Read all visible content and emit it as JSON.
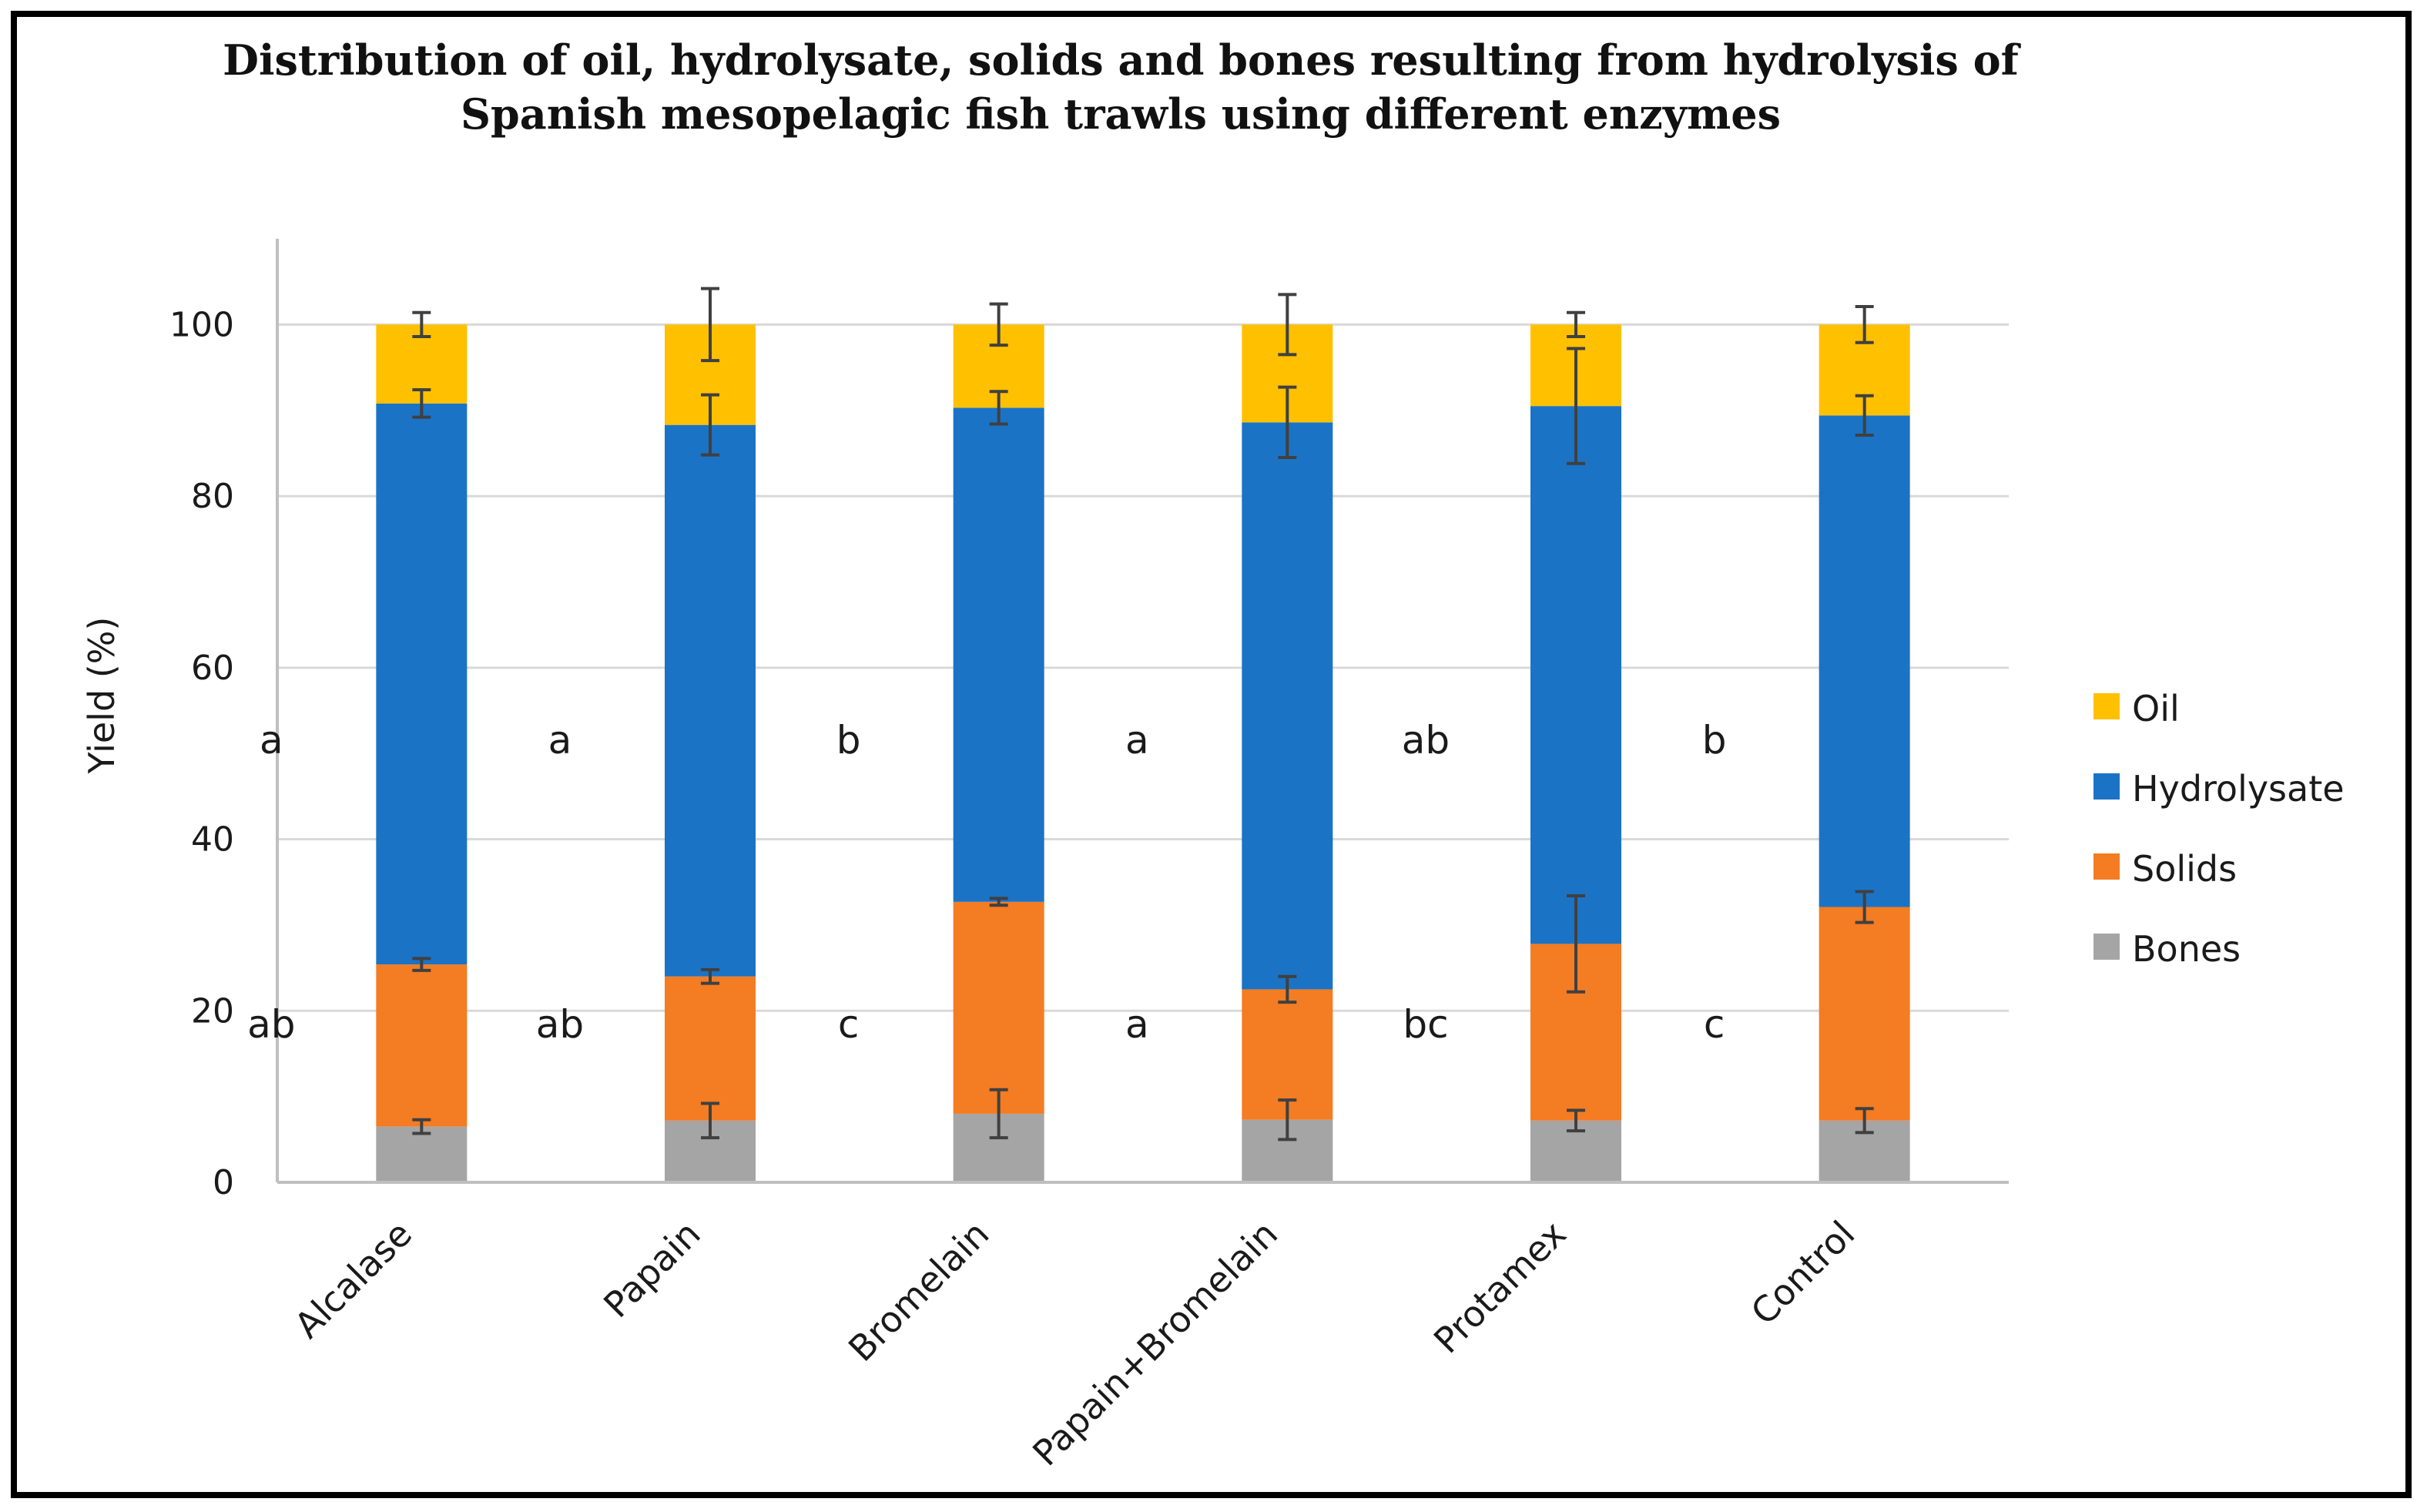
{
  "chart_data": {
    "type": "bar",
    "stacked": true,
    "title_lines": [
      "Distribution of oil, hydrolysate, solids and bones resulting from hydrolysis of",
      "Spanish mesopelagic fish trawls using different enzymes"
    ],
    "xlabel": "",
    "ylabel": "Yield (%)",
    "ylim": [
      0,
      110
    ],
    "yticks": [
      "0",
      "20",
      "40",
      "60",
      "80",
      "100"
    ],
    "grid": true,
    "legend_position": "right",
    "categories": [
      "Alcalase",
      "Papain",
      "Bromelain",
      "Papain+Bromelain",
      "Protamex",
      "Control"
    ],
    "series": [
      {
        "name": "Bones",
        "color": "#a5a5a5",
        "values": [
          6.5,
          7.2,
          8.0,
          7.3,
          7.2,
          7.2
        ],
        "errors": [
          0.8,
          2.0,
          2.8,
          2.3,
          1.2,
          1.4
        ]
      },
      {
        "name": "Solids",
        "color": "#f47c22",
        "values": [
          18.9,
          16.8,
          24.7,
          15.2,
          20.6,
          24.9
        ],
        "errors": [
          0.7,
          0.8,
          0.4,
          1.5,
          5.6,
          1.8
        ]
      },
      {
        "name": "Hydrolysate",
        "color": "#1b73c6",
        "values": [
          65.4,
          64.3,
          57.6,
          66.1,
          62.7,
          57.3
        ],
        "errors": [
          1.6,
          3.5,
          1.9,
          4.1,
          6.7,
          2.3
        ]
      },
      {
        "name": "Oil",
        "color": "#ffc000",
        "values": [
          9.2,
          11.7,
          9.7,
          11.4,
          9.5,
          10.6
        ],
        "errors": [
          1.4,
          4.2,
          2.4,
          3.5,
          1.4,
          2.1
        ]
      }
    ],
    "legend_order": [
      "Oil",
      "Hydrolysate",
      "Solids",
      "Bones"
    ],
    "annotations": {
      "hydrolysate_letters": [
        "a",
        "a",
        "b",
        "a",
        "ab",
        "b"
      ],
      "solids_letters": [
        "ab",
        "ab",
        "c",
        "a",
        "bc",
        "c"
      ]
    }
  },
  "colors": {
    "axis": "#bfbfbf",
    "gridline": "#d9d9d9",
    "error_bar": "#404040"
  }
}
